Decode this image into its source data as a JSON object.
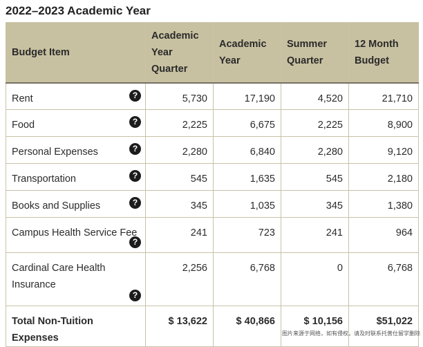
{
  "title": "2022–2023 Academic Year",
  "table": {
    "headers": {
      "item": "Budget Item",
      "quarter": "Academic Year Quarter",
      "year": "Academic Year",
      "summer": "Summer Quarter",
      "twelve": "12 Month Budget"
    },
    "rows": [
      {
        "item": "Rent",
        "quarter": "5,730",
        "year": "17,190",
        "summer": "4,520",
        "twelve": "21,710"
      },
      {
        "item": "Food",
        "quarter": "2,225",
        "year": "6,675",
        "summer": "2,225",
        "twelve": "8,900"
      },
      {
        "item": "Personal Expenses",
        "quarter": "2,280",
        "year": "6,840",
        "summer": "2,280",
        "twelve": "9,120"
      },
      {
        "item": "Transportation",
        "quarter": "545",
        "year": "1,635",
        "summer": "545",
        "twelve": "2,180"
      },
      {
        "item": "Books and Supplies",
        "quarter": "345",
        "year": "1,035",
        "summer": "345",
        "twelve": "1,380"
      },
      {
        "item": "Campus Health Service Fee",
        "quarter": "241",
        "year": "723",
        "summer": "241",
        "twelve": "964"
      },
      {
        "item": "Cardinal Care Health Insurance",
        "quarter": "2,256",
        "year": "6,768",
        "summer": "0",
        "twelve": "6,768"
      }
    ],
    "total": {
      "item": "Total Non-Tuition Expenses",
      "quarter": "$ 13,622",
      "year": "$ 40,866",
      "summer": "$ 10,156",
      "twelve": "$51,022"
    }
  },
  "help_icon_glyph": "?",
  "watermark": "图片来源于网络，如有侵权，请及时联系托普仕留学删除"
}
